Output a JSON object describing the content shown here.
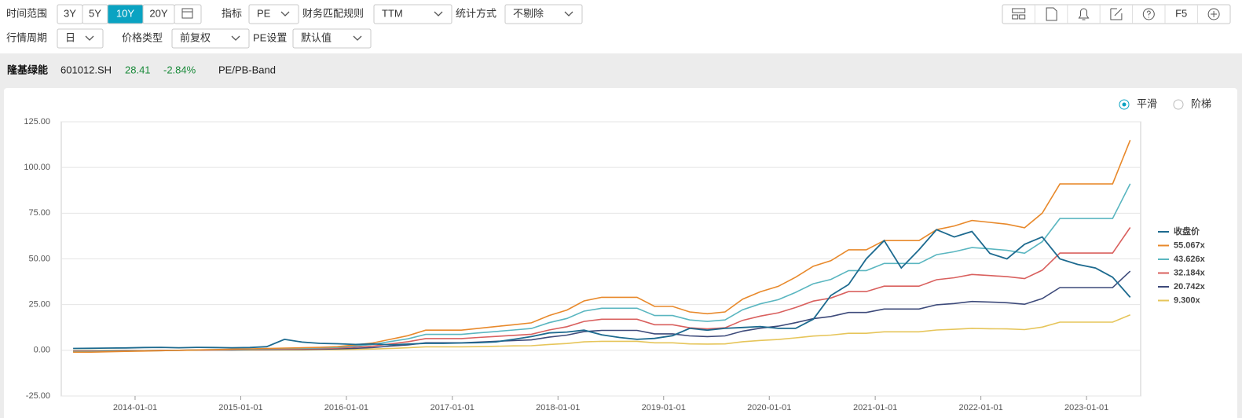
{
  "toolbar": {
    "time_range_label": "时间范围",
    "time_buttons": [
      "3Y",
      "5Y",
      "10Y",
      "20Y"
    ],
    "active_time": 2,
    "indicator_label": "指标",
    "indicator": "PE",
    "match_label": "财务匹配规则",
    "match": "TTM",
    "stat_label": "统计方式",
    "stat": "不剔除",
    "period_label": "行情周期",
    "period": "日",
    "price_type_label": "价格类型",
    "price_type": "前复权",
    "pe_label": "PE设置",
    "pe_setting": "默认值",
    "f5": "F5"
  },
  "header": {
    "name": "隆基绿能",
    "code": "601012.SH",
    "price": 28.41,
    "change": "-2.84%",
    "tool": "PE/PB-Band"
  },
  "mode": {
    "options": [
      "平滑",
      "阶梯"
    ],
    "selected": 0
  },
  "chart_data": {
    "type": "line",
    "x": [
      "2013-06-01",
      "2013-08-01",
      "2013-10-01",
      "2013-12-01",
      "2014-02-01",
      "2014-04-01",
      "2014-06-01",
      "2014-08-01",
      "2014-10-01",
      "2014-12-01",
      "2015-02-01",
      "2015-04-01",
      "2015-06-01",
      "2015-08-01",
      "2015-10-01",
      "2015-12-01",
      "2016-02-01",
      "2016-04-01",
      "2016-06-01",
      "2016-08-01",
      "2016-10-01",
      "2016-12-01",
      "2017-02-01",
      "2017-04-01",
      "2017-06-01",
      "2017-08-01",
      "2017-10-01",
      "2017-12-01",
      "2018-02-01",
      "2018-04-01",
      "2018-06-01",
      "2018-08-01",
      "2018-10-01",
      "2018-12-01",
      "2019-02-01",
      "2019-04-01",
      "2019-06-01",
      "2019-08-01",
      "2019-10-01",
      "2019-12-01",
      "2020-02-01",
      "2020-04-01",
      "2020-06-01",
      "2020-08-01",
      "2020-10-01",
      "2020-12-01",
      "2021-02-01",
      "2021-04-01",
      "2021-06-01",
      "2021-08-01",
      "2021-10-01",
      "2021-12-01",
      "2022-02-01",
      "2022-04-01",
      "2022-06-01",
      "2022-08-01",
      "2022-10-01",
      "2022-12-01",
      "2023-02-01",
      "2023-04-01",
      "2023-06-01"
    ],
    "series": [
      {
        "name": "收盘价",
        "color": "#1d6a8f",
        "values": [
          1,
          1.1,
          1.2,
          1.3,
          1.5,
          1.6,
          1.4,
          1.6,
          1.5,
          1.4,
          1.5,
          2,
          6,
          4.5,
          3.8,
          3.6,
          3.2,
          3.5,
          3,
          3.4,
          3.8,
          3.8,
          4,
          4.2,
          4.6,
          6,
          7.5,
          9.5,
          10,
          11,
          8.5,
          7,
          6,
          6.5,
          8,
          12,
          11,
          12,
          12.5,
          13,
          12,
          12,
          17,
          30,
          36,
          50,
          60,
          45,
          55,
          66,
          62,
          65,
          53,
          50,
          58,
          62,
          50,
          47,
          45,
          40,
          29
        ]
      },
      {
        "name": "55.067x",
        "color": "#e8892b",
        "values": [
          -1,
          -1,
          -0.8,
          -0.6,
          -0.4,
          -0.2,
          0,
          0.2,
          0.4,
          0.6,
          0.8,
          1,
          1.2,
          1.4,
          1.6,
          2,
          3,
          4,
          6,
          8,
          11,
          11,
          11,
          12,
          13,
          14,
          15,
          19,
          22,
          27,
          29,
          29,
          29,
          24,
          24,
          21,
          20,
          21,
          28,
          32,
          35,
          40,
          46,
          49,
          55,
          55,
          60,
          60,
          60,
          66,
          68,
          71,
          70,
          69,
          67,
          75,
          91,
          91,
          91,
          91,
          115
        ]
      },
      {
        "name": "43.626x",
        "color": "#5ab6c0",
        "values": [
          -0.8,
          -0.8,
          -0.6,
          -0.5,
          -0.3,
          -0.2,
          0,
          0.2,
          0.3,
          0.5,
          0.6,
          0.8,
          1,
          1.1,
          1.3,
          1.6,
          2.4,
          3.2,
          4.8,
          6.3,
          8.7,
          8.7,
          8.7,
          9.5,
          10.3,
          11.1,
          11.9,
          15.1,
          17.4,
          21.4,
          23,
          23,
          23,
          19,
          19,
          16.6,
          15.8,
          16.6,
          22.2,
          25.4,
          27.7,
          31.7,
          36.4,
          38.8,
          43.6,
          43.6,
          47.5,
          47.5,
          47.5,
          52.3,
          53.9,
          56.2,
          55.5,
          54.7,
          53.1,
          59.4,
          72.1,
          72.1,
          72.1,
          72.1,
          91.1
        ]
      },
      {
        "name": "32.184x",
        "color": "#d9605e",
        "values": [
          -0.6,
          -0.6,
          -0.5,
          -0.4,
          -0.2,
          -0.1,
          0,
          0.1,
          0.2,
          0.4,
          0.5,
          0.6,
          0.7,
          0.8,
          0.9,
          1.2,
          1.8,
          2.3,
          3.5,
          4.7,
          6.4,
          6.4,
          6.4,
          7,
          7.6,
          8.2,
          8.8,
          11.1,
          12.9,
          15.8,
          17,
          17,
          17,
          14,
          14,
          12.3,
          11.7,
          12.3,
          16.4,
          18.7,
          20.5,
          23.4,
          26.9,
          28.6,
          32.1,
          32.1,
          35.1,
          35.1,
          35.1,
          38.6,
          39.7,
          41.5,
          40.9,
          40.3,
          39.2,
          43.8,
          53.2,
          53.2,
          53.2,
          53.2,
          67.2
        ]
      },
      {
        "name": "20.742x",
        "color": "#3d4a7a",
        "values": [
          -0.4,
          -0.4,
          -0.3,
          -0.2,
          -0.2,
          -0.1,
          0,
          0.1,
          0.2,
          0.2,
          0.3,
          0.4,
          0.5,
          0.5,
          0.6,
          0.8,
          1.1,
          1.5,
          2.3,
          3,
          4.1,
          4.1,
          4.1,
          4.5,
          4.9,
          5.3,
          5.7,
          7.2,
          8.3,
          10.2,
          10.9,
          10.9,
          10.9,
          9,
          9,
          7.9,
          7.5,
          7.9,
          10.5,
          12.1,
          13.2,
          15.1,
          17.3,
          18.5,
          20.7,
          20.7,
          22.6,
          22.6,
          22.6,
          24.9,
          25.6,
          26.7,
          26.4,
          26,
          25.2,
          28.3,
          34.3,
          34.3,
          34.3,
          34.3,
          43.3
        ]
      },
      {
        "name": "9.300x",
        "color": "#e6c55a",
        "values": [
          -0.2,
          -0.2,
          -0.1,
          -0.1,
          -0.1,
          0,
          0,
          0,
          0.1,
          0.1,
          0.1,
          0.2,
          0.2,
          0.2,
          0.3,
          0.3,
          0.5,
          0.7,
          1,
          1.4,
          1.9,
          1.9,
          1.9,
          2,
          2.2,
          2.4,
          2.5,
          3.2,
          3.7,
          4.6,
          4.9,
          4.9,
          4.9,
          4.1,
          4.1,
          3.5,
          3.4,
          3.5,
          4.7,
          5.4,
          5.9,
          6.8,
          7.8,
          8.3,
          9.3,
          9.3,
          10.1,
          10.1,
          10.1,
          11.1,
          11.5,
          12,
          11.8,
          11.7,
          11.3,
          12.7,
          15.4,
          15.4,
          15.4,
          15.4,
          19.4
        ]
      }
    ],
    "xlim": [
      "2013-04-21",
      "2023-07-07"
    ],
    "xticks": [
      "2014-01-01",
      "2015-01-01",
      "2016-01-01",
      "2017-01-01",
      "2018-01-01",
      "2019-01-01",
      "2020-01-01",
      "2021-01-01",
      "2022-01-01",
      "2023-01-01"
    ],
    "ylim": [
      -25,
      125
    ],
    "yticks": [
      {
        "value": -25,
        "label": "-25.00"
      },
      {
        "value": 0,
        "label": "0.00"
      },
      {
        "value": 25,
        "label": "25.00"
      },
      {
        "value": 50,
        "label": "50.00"
      },
      {
        "value": 75,
        "label": "75.00"
      },
      {
        "value": 100,
        "label": "100.00"
      },
      {
        "value": 125,
        "label": "125.00"
      }
    ],
    "grid": true,
    "legend": "right"
  }
}
